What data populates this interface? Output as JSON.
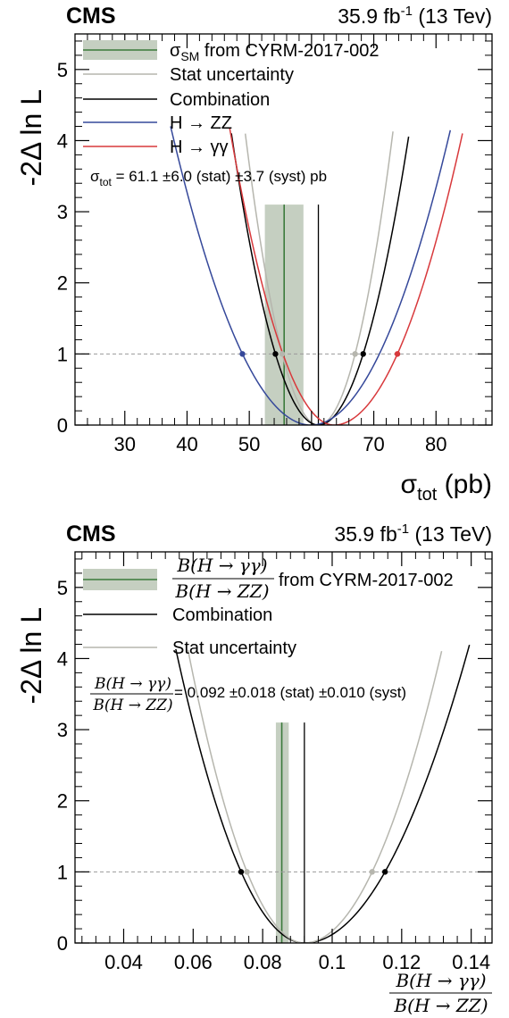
{
  "colors": {
    "band": "#c5cfc1",
    "sm_line": "#3b7a3b",
    "stat": "#b6b6ae",
    "combination": "#000000",
    "zz": "#35489a",
    "gg": "#d8393c",
    "threshold": "#9a9a9a"
  },
  "chart_data": [
    {
      "type": "line",
      "experiment": "CMS",
      "lumi": "35.9 fb",
      "lumi_sup": "-1",
      "energy": "(13 Tev)",
      "ylabel": "-2Δ ln L",
      "xlabel_main": "σ",
      "xlabel_sub": "tot",
      "xlabel_unit": "(pb)",
      "xlim": [
        22,
        89
      ],
      "ylim": [
        0,
        5.5
      ],
      "xticks": [
        30,
        40,
        50,
        60,
        70,
        80
      ],
      "yticks": [
        0,
        1,
        2,
        3,
        4,
        5
      ],
      "threshold": 1,
      "sm_band": {
        "center": 55.6,
        "low": 52.5,
        "high": 58.7,
        "label_main": "σ",
        "label_sub": "SM",
        "label_rest": " from CYRM-2017-002"
      },
      "series": [
        {
          "name": "Stat uncertainty",
          "key": "stat",
          "color": "#b6b6ae",
          "best_fit": 61.1,
          "crossings": [
            55.3,
            67.0
          ],
          "show_markers": true,
          "legend": true
        },
        {
          "name": "Combination",
          "key": "combination",
          "color": "#000000",
          "best_fit": 61.1,
          "crossings": [
            54.2,
            68.3
          ],
          "show_markers": true,
          "legend": true,
          "vline": true
        },
        {
          "name": "H → ZZ",
          "key": "zz",
          "color": "#35489a",
          "best_fit": 59.9,
          "crossings": [
            48.9,
            70.9
          ],
          "show_markers": true,
          "legend": true,
          "cross_marker_side": "left"
        },
        {
          "name": "H → γγ",
          "key": "gg",
          "color": "#d8393c",
          "best_fit": 63.6,
          "crossings": [
            55.4,
            73.8
          ],
          "show_markers": true,
          "legend": true,
          "cross_marker_side": "right"
        }
      ],
      "result": {
        "sym_main": "σ",
        "sym_sub": "tot",
        "text": " = 61.1  ±6.0 (stat) ±3.7 (syst)  pb"
      }
    },
    {
      "type": "line",
      "experiment": "CMS",
      "lumi": "35.9 fb",
      "lumi_sup": "-1",
      "energy": "(13 TeV)",
      "ylabel": "-2Δ ln L",
      "xlabel_num": "B(H → γγ)",
      "xlabel_den": "B(H → ZZ)",
      "xlim": [
        0.026,
        0.146
      ],
      "ylim": [
        0,
        5.5
      ],
      "xticks": [
        0.04,
        0.06,
        0.08,
        0.1,
        0.12,
        0.14
      ],
      "xtick_labels": [
        "0.04",
        "0.06",
        "0.08",
        "0.1",
        "0.12",
        "0.14"
      ],
      "yticks": [
        0,
        1,
        2,
        3,
        4,
        5
      ],
      "threshold": 1,
      "sm_band": {
        "center": 0.0855,
        "low": 0.0838,
        "high": 0.0875,
        "label_num": "B(H → γγ)",
        "label_den": "B(H → ZZ)",
        "label_rest": " from CYRM-2017-002"
      },
      "series": [
        {
          "name": "Combination",
          "key": "combination",
          "color": "#000000",
          "best_fit": 0.092,
          "crossings": [
            0.0738,
            0.1152
          ],
          "show_markers": true,
          "legend": true,
          "vline": true
        },
        {
          "name": "Stat uncertainty",
          "key": "stat",
          "color": "#b6b6ae",
          "best_fit": 0.092,
          "crossings": [
            0.0755,
            0.1115
          ],
          "show_markers": true,
          "legend": true
        }
      ],
      "result": {
        "num": "B(H → γγ)",
        "den": "B(H → ZZ)",
        "text": " = 0.092  ±0.018 (stat) ±0.010 (syst)"
      }
    }
  ]
}
